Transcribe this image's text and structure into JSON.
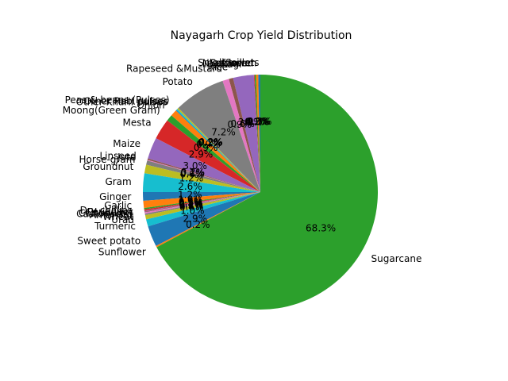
{
  "chart_data": {
    "type": "pie",
    "title": "Nayagarh Crop Yield Distribution",
    "start_angle_deg": 90,
    "autopct_format": "%.1f%%",
    "categories": [
      "Small millets",
      "Sesamum",
      "Safflower",
      "Niger seed",
      "Ragi",
      "Rice",
      "Rapeseed &Mustard",
      "Potato",
      "Peas & beans (Pulses)",
      "Other Rabi pulses",
      "Other Kharif pulses",
      "Onion",
      "Moong(Green Gram)",
      "Mesta",
      "Maize",
      "Linseed",
      "Jute",
      "Horse-gram",
      "Groundnut",
      "Gram",
      "Ginger",
      "Garlic",
      "Dry chillies",
      "Coriander",
      "Cotton(lint)",
      "Castor seed",
      "Arhar/Tur",
      "Wheat",
      "Urad",
      "Turmeric",
      "Sweet potato",
      "Sunflower",
      "Sugarcane"
    ],
    "values": [
      0.3,
      0.3,
      0.2,
      0.1,
      2.9,
      0.6,
      0.9,
      7.2,
      0.2,
      0.2,
      0.1,
      0.9,
      0.9,
      2.9,
      3.0,
      0.2,
      0.1,
      0.6,
      1.2,
      2.6,
      1.2,
      1.0,
      0.2,
      0.2,
      0.1,
      0.1,
      0.2,
      0.2,
      0.6,
      1.0,
      2.9,
      0.2,
      68.3
    ],
    "colors": [
      "#1f77b4",
      "#ff7f0e",
      "#2ca02c",
      "#d62728",
      "#9467bd",
      "#8c564b",
      "#e377c2",
      "#7f7f7f",
      "#bcbd22",
      "#17becf"
    ],
    "grid": false,
    "legend": "none"
  }
}
